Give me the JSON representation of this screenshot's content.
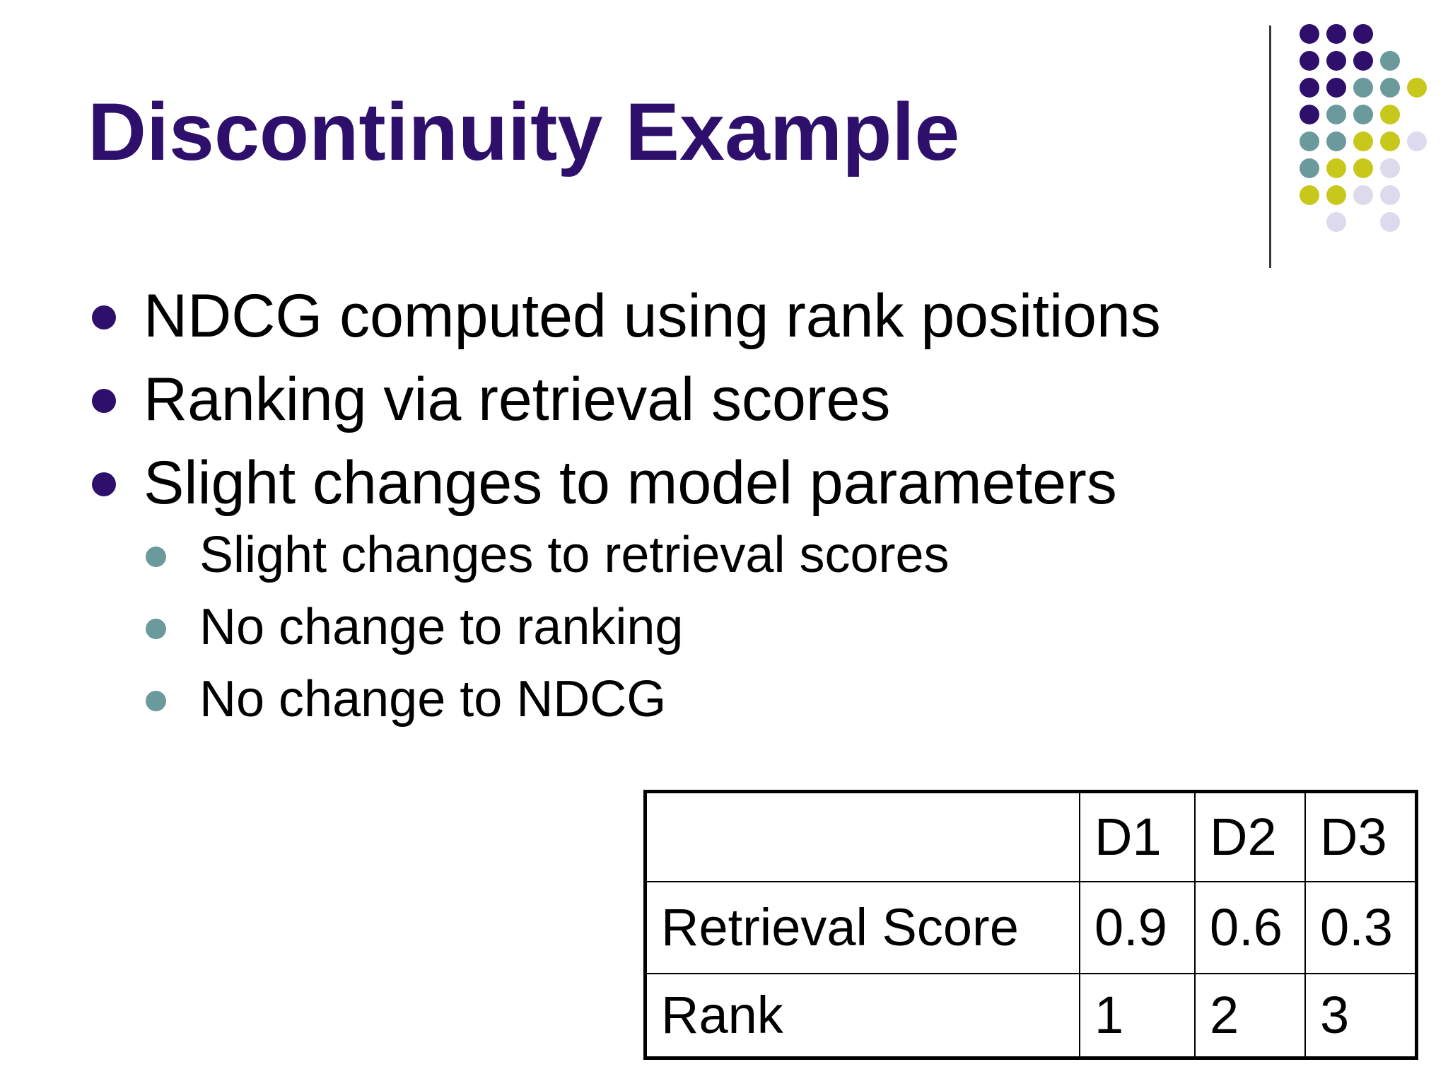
{
  "slide": {
    "title": "Discontinuity Example",
    "colors": {
      "title": "#2e0f6b",
      "primary_bullet": "#2e0f6b",
      "secondary_bullet": "#6b9a9c",
      "dot_purple": "#2e0f6b",
      "dot_teal": "#6b9a9c",
      "dot_yellow": "#c8c81c",
      "dot_lavender": "#dcdaec"
    },
    "bullets": [
      {
        "level": 1,
        "text": "NDCG computed using rank positions"
      },
      {
        "level": 1,
        "text": "Ranking via retrieval scores"
      },
      {
        "level": 1,
        "text": "Slight changes to model parameters"
      },
      {
        "level": 2,
        "text": "Slight changes to retrieval scores"
      },
      {
        "level": 2,
        "text": "No change to ranking"
      },
      {
        "level": 2,
        "text": "No change to NDCG"
      }
    ],
    "table": {
      "headers": [
        "",
        "D1",
        "D2",
        "D3"
      ],
      "rows": [
        [
          "Retrieval Score",
          "0.9",
          "0.6",
          "0.3"
        ],
        [
          "Rank",
          "1",
          "2",
          "3"
        ]
      ]
    }
  }
}
